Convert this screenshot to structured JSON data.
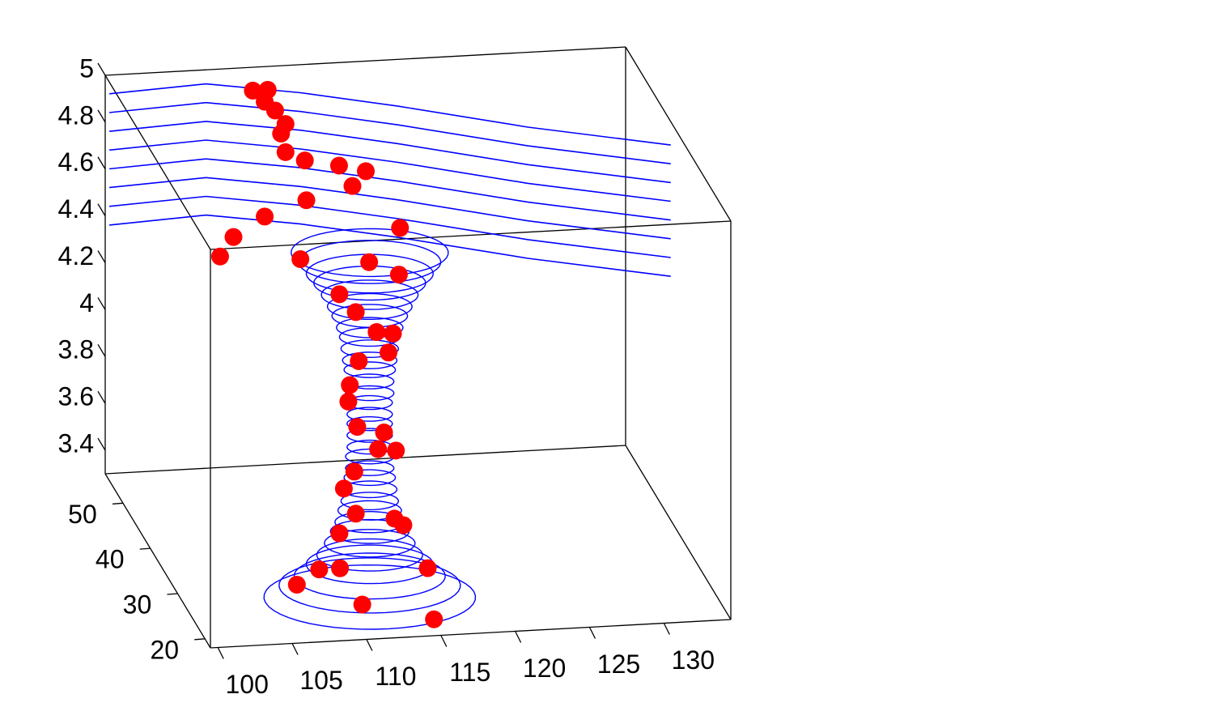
{
  "chart_data": {
    "type": "streamline",
    "xlim": [
      99.5,
      134.5
    ],
    "ylim": [
      18,
      56.5
    ],
    "zlim": [
      3.3,
      5
    ],
    "xticks": [
      100,
      105,
      110,
      115,
      120,
      125,
      130
    ],
    "yticks": [
      20,
      30,
      40,
      50
    ],
    "zticks": [
      3.4,
      3.6,
      3.8,
      4,
      4.2,
      4.4,
      4.6,
      4.8,
      5
    ],
    "streamlines": {
      "color": "#0000ff",
      "x": [
        99.5,
        106,
        112,
        118,
        126,
        134.5
      ],
      "y": [
        55,
        55,
        53,
        50,
        46,
        40
      ],
      "lines": [
        {
          "z": [
            4.95,
            4.97,
            4.95,
            4.93,
            4.89,
            4.9
          ]
        },
        {
          "z": [
            4.87,
            4.89,
            4.87,
            4.85,
            4.81,
            4.82
          ]
        },
        {
          "z": [
            4.79,
            4.81,
            4.79,
            4.77,
            4.73,
            4.74
          ]
        },
        {
          "z": [
            4.71,
            4.73,
            4.71,
            4.69,
            4.65,
            4.66
          ]
        },
        {
          "z": [
            4.63,
            4.65,
            4.63,
            4.61,
            4.57,
            4.58
          ]
        },
        {
          "z": [
            4.55,
            4.57,
            4.55,
            4.53,
            4.49,
            4.5
          ]
        },
        {
          "z": [
            4.47,
            4.49,
            4.47,
            4.45,
            4.41,
            4.42
          ]
        },
        {
          "z": [
            4.39,
            4.41,
            4.39,
            4.37,
            4.33,
            4.34
          ]
        }
      ]
    },
    "vortex": {
      "color": "#0000ff",
      "center_x": 111.5,
      "center_y": 25,
      "z": [
        3.34,
        3.39,
        3.43,
        3.48,
        3.52,
        3.57,
        3.62,
        3.66,
        3.71,
        3.75,
        3.8,
        3.85,
        3.89,
        3.94,
        3.98,
        4.03,
        4.08,
        4.12,
        4.17,
        4.21,
        4.26,
        4.31,
        4.35,
        4.4,
        4.45,
        4.49,
        4.54,
        4.58,
        4.63,
        4.68,
        4.72,
        4.77,
        4.81
      ],
      "radius": [
        7,
        6,
        5,
        4.2,
        3.5,
        3.0,
        2.6,
        2.3,
        2.1,
        1.9,
        1.8,
        1.7,
        1.6,
        1.6,
        1.5,
        1.5,
        1.5,
        1.5,
        1.5,
        1.6,
        1.6,
        1.7,
        1.8,
        1.9,
        2.0,
        2.2,
        2.5,
        2.8,
        3.2,
        3.7,
        4.2,
        4.7,
        5.2
      ]
    },
    "points": {
      "color": "#ff0000",
      "x": [
        108.6,
        109.6,
        109.4,
        110.1,
        110.8,
        110.5,
        110.8,
        112.1,
        114.4,
        116.2,
        115.3,
        112.2,
        109.4,
        118.5,
        107.3,
        106.4,
        111.8,
        113.3,
        115.3,
        111.3,
        112.4,
        113.8,
        114.9,
        114.6,
        112.6,
        112.0,
        111.9,
        112.5,
        114.3,
        113.9,
        115.1,
        112.3,
        111.6,
        112.4,
        115.0,
        115.6,
        111.3,
        108.1,
        109.5,
        115.4,
        106.6,
        111.0,
        114.9
      ],
      "y": [
        52,
        52,
        52,
        52,
        52,
        52,
        52,
        52,
        52,
        52,
        52,
        52,
        52,
        52,
        52,
        52,
        52,
        35,
        35,
        35,
        35,
        35,
        35,
        35,
        35,
        35,
        35,
        35,
        35,
        35,
        35,
        35,
        35,
        35,
        35,
        35,
        35,
        25,
        25,
        25,
        25,
        25,
        20
      ],
      "z": [
        4.99,
        4.99,
        4.94,
        4.9,
        4.84,
        4.8,
        4.72,
        4.68,
        4.65,
        4.62,
        4.56,
        4.51,
        4.45,
        4.37,
        4.37,
        4.29,
        4.26,
        4.57,
        4.51,
        4.44,
        4.36,
        4.27,
        4.26,
        4.18,
        4.15,
        4.05,
        3.98,
        3.87,
        3.84,
        3.77,
        3.76,
        3.68,
        3.61,
        3.5,
        3.47,
        3.44,
        3.42,
        3.47,
        3.47,
        3.45,
        3.41,
        3.31,
        3.33
      ]
    }
  }
}
